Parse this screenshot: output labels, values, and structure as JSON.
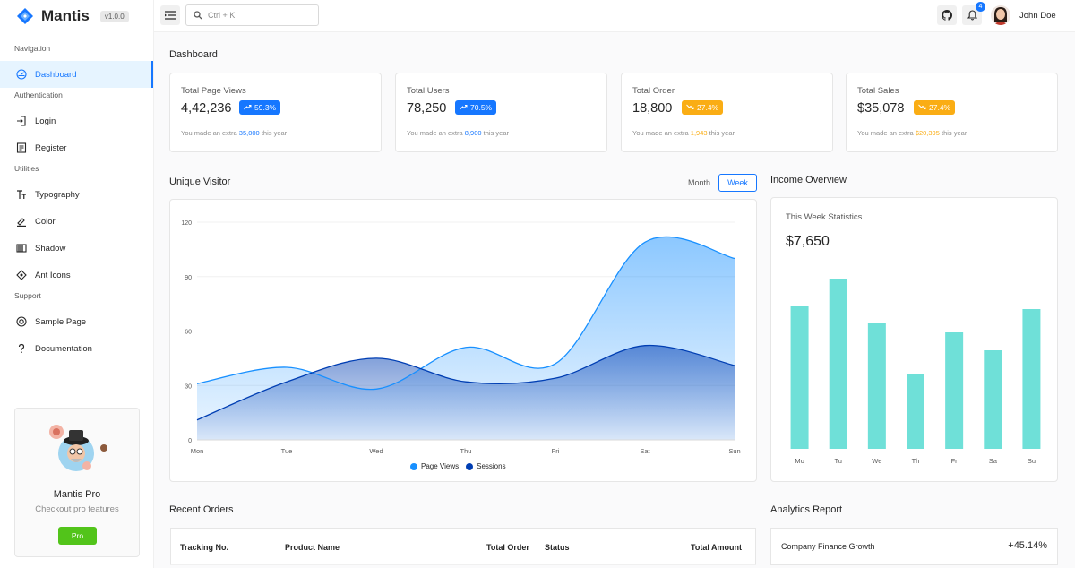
{
  "app": {
    "name": "Mantis",
    "version": "v1.0.0"
  },
  "sidebar": {
    "groups": [
      {
        "title": "Navigation",
        "items": [
          {
            "label": "Dashboard",
            "icon": "dashboard-icon"
          }
        ]
      },
      {
        "title": "Authentication",
        "items": [
          {
            "label": "Login",
            "icon": "login-icon"
          },
          {
            "label": "Register",
            "icon": "register-icon"
          }
        ]
      },
      {
        "title": "Utilities",
        "items": [
          {
            "label": "Typography",
            "icon": "typography-icon"
          },
          {
            "label": "Color",
            "icon": "color-icon"
          },
          {
            "label": "Shadow",
            "icon": "shadow-icon"
          },
          {
            "label": "Ant Icons",
            "icon": "ant-icons-icon"
          }
        ]
      },
      {
        "title": "Support",
        "items": [
          {
            "label": "Sample Page",
            "icon": "sample-page-icon"
          },
          {
            "label": "Documentation",
            "icon": "documentation-icon"
          }
        ]
      }
    ],
    "active": "Dashboard",
    "pro_card": {
      "title": "Mantis Pro",
      "subtitle": "Checkout pro features",
      "button": "Pro"
    }
  },
  "header": {
    "search_placeholder": "Ctrl + K",
    "notification_count": "4",
    "user_name": "John Doe"
  },
  "page_title": "Dashboard",
  "stats": [
    {
      "label": "Total Page Views",
      "value": "4,42,236",
      "change": "59.3%",
      "trend": "up",
      "note_prefix": "You made an extra",
      "note_value": "35,000",
      "note_suffix": "this year",
      "color": "#1677ff"
    },
    {
      "label": "Total Users",
      "value": "78,250",
      "change": "70.5%",
      "trend": "up",
      "note_prefix": "You made an extra",
      "note_value": "8,900",
      "note_suffix": "this year",
      "color": "#1677ff"
    },
    {
      "label": "Total Order",
      "value": "18,800",
      "change": "27.4%",
      "trend": "down",
      "note_prefix": "You made an extra",
      "note_value": "1,943",
      "note_suffix": "this year",
      "color": "#faad14"
    },
    {
      "label": "Total Sales",
      "value": "$35,078",
      "change": "27.4%",
      "trend": "down",
      "note_prefix": "You made an extra",
      "note_value": "$20,395",
      "note_suffix": "this year",
      "color": "#faad14"
    }
  ],
  "unique_visitor": {
    "title": "Unique Visitor",
    "toggles": {
      "month": "Month",
      "week": "Week",
      "active": "Week"
    },
    "chart_data": {
      "type": "area",
      "categories": [
        "Mon",
        "Tue",
        "Wed",
        "Thu",
        "Fri",
        "Sat",
        "Sun"
      ],
      "ylim": [
        0,
        120
      ],
      "yticks": [
        0,
        30,
        60,
        90,
        120
      ],
      "series": [
        {
          "name": "Page Views",
          "values": [
            31,
            40,
            28,
            51,
            42,
            109,
            100
          ],
          "color": "#1890ff"
        },
        {
          "name": "Sessions",
          "values": [
            11,
            32,
            45,
            32,
            34,
            52,
            41
          ],
          "color": "#003eb3"
        }
      ],
      "legend": "bottom"
    }
  },
  "income_overview": {
    "title": "Income Overview",
    "label": "This Week Statistics",
    "value": "$7,650",
    "chart_data": {
      "type": "bar",
      "categories": [
        "Mo",
        "Tu",
        "We",
        "Th",
        "Fr",
        "Sa",
        "Su"
      ],
      "values": [
        80,
        95,
        70,
        42,
        65,
        55,
        78
      ],
      "color": "#6fe0d8"
    }
  },
  "recent_orders": {
    "title": "Recent Orders",
    "columns": [
      "Tracking No.",
      "Product Name",
      "Total Order",
      "Status",
      "Total Amount"
    ]
  },
  "analytics_report": {
    "title": "Analytics Report",
    "rows": [
      {
        "label": "Company Finance Growth",
        "value": "+45.14%"
      }
    ]
  }
}
